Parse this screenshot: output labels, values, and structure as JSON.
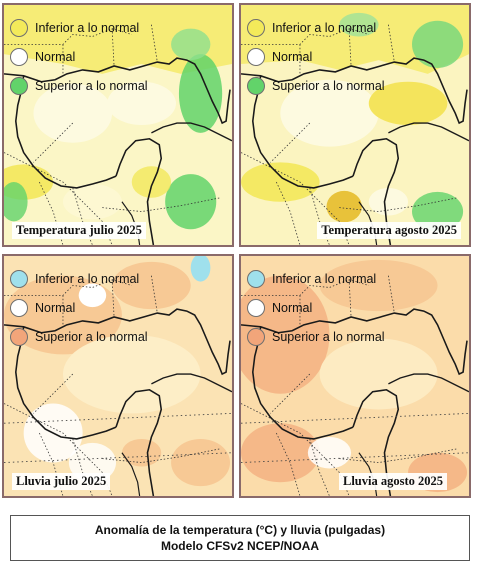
{
  "colors": {
    "below_temp": "#f3ea5a",
    "normal": "#ffffff",
    "above_temp": "#62d36a",
    "below_rain": "#9fe0ec",
    "above_rain": "#f2a57a",
    "panel_border": "#8a6a6a"
  },
  "panels": [
    {
      "id": "temp-july",
      "caption": "Temperatura julio 2025",
      "legend": [
        {
          "label": "Inferior a lo normal",
          "color": "#f3ea5a"
        },
        {
          "label": "Normal",
          "color": "#ffffff"
        },
        {
          "label": "Superior a lo normal",
          "color": "#62d36a"
        }
      ]
    },
    {
      "id": "temp-august",
      "caption": "Temperatura agosto 2025",
      "legend": [
        {
          "label": "Inferior a lo normal",
          "color": "#f3ea5a"
        },
        {
          "label": "Normal",
          "color": "#ffffff"
        },
        {
          "label": "Superior a lo normal",
          "color": "#62d36a"
        }
      ]
    },
    {
      "id": "rain-july",
      "caption": "Lluvia julio 2025",
      "legend": [
        {
          "label": "Inferior a lo normal",
          "color": "#9fe0ec"
        },
        {
          "label": "Normal",
          "color": "#ffffff"
        },
        {
          "label": "Superior a lo normal",
          "color": "#f2a57a"
        }
      ]
    },
    {
      "id": "rain-august",
      "caption": "Lluvia agosto 2025",
      "legend": [
        {
          "label": "Inferior a lo normal",
          "color": "#9fe0ec"
        },
        {
          "label": "Normal",
          "color": "#ffffff"
        },
        {
          "label": "Superior a lo normal",
          "color": "#f2a57a"
        }
      ]
    }
  ],
  "footer": {
    "line1": "Anomalía de la temperatura (°C) y lluvia (pulgadas)",
    "line2": "Modelo CFSv2 NCEP/NOAA"
  }
}
